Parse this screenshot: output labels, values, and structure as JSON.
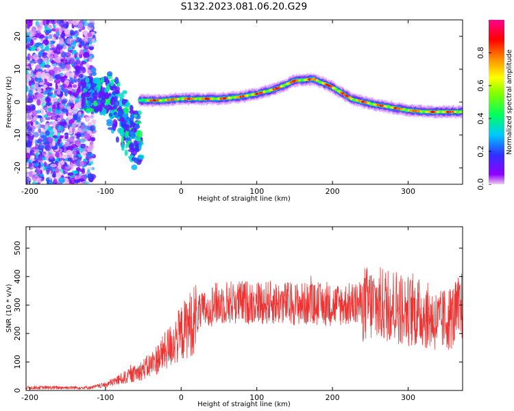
{
  "title": "S132.2023.081.06.20.G29",
  "chart_data": [
    {
      "type": "heatmap",
      "xlabel": "Height of straight line (km)",
      "ylabel": "Frequency (Hz)",
      "xlim": [
        -205,
        372
      ],
      "ylim": [
        -25,
        25
      ],
      "xticks": [
        -200,
        -100,
        0,
        100,
        200,
        300
      ],
      "yticks": [
        -20,
        -10,
        0,
        10,
        20
      ],
      "colorbar": {
        "label": "Normalized spectral amplitude",
        "range": [
          0,
          1
        ],
        "ticks": [
          0.0,
          0.2,
          0.4,
          0.6,
          0.8
        ],
        "colors": [
          "#f0c8f0",
          "#8000ff",
          "#0060ff",
          "#00e0ff",
          "#00ff40",
          "#80ff00",
          "#ffff00",
          "#ff8000",
          "#ff0000",
          "#ff0090"
        ]
      },
      "ridge": {
        "x": [
          -50,
          -25,
          0,
          25,
          50,
          75,
          100,
          125,
          150,
          175,
          200,
          225,
          250,
          275,
          300,
          325,
          350,
          372
        ],
        "y": [
          0.5,
          0.5,
          1.0,
          1.0,
          1.0,
          1.5,
          2.5,
          4.0,
          6.5,
          7.0,
          4.5,
          1.0,
          -0.5,
          -1.5,
          -2.5,
          -3.0,
          -3.0,
          -3.0
        ]
      }
    },
    {
      "type": "line",
      "xlabel": "Height of straight line (km)",
      "ylabel": "SNR (10 * v/v)",
      "xlim": [
        -205,
        372
      ],
      "ylim": [
        0,
        575
      ],
      "xticks": [
        -200,
        -100,
        0,
        100,
        200,
        300
      ],
      "yticks": [
        0,
        100,
        200,
        300,
        400,
        500
      ],
      "color": "#ee3333",
      "envelope": {
        "x": [
          -205,
          -120,
          -100,
          -80,
          -60,
          -40,
          -20,
          0,
          20,
          40,
          60,
          100,
          150,
          200,
          240,
          260,
          280,
          300,
          320,
          340,
          360,
          372
        ],
        "y": [
          10,
          10,
          20,
          40,
          60,
          90,
          140,
          200,
          260,
          300,
          310,
          310,
          305,
          300,
          305,
          300,
          300,
          280,
          270,
          240,
          260,
          290
        ]
      }
    }
  ]
}
